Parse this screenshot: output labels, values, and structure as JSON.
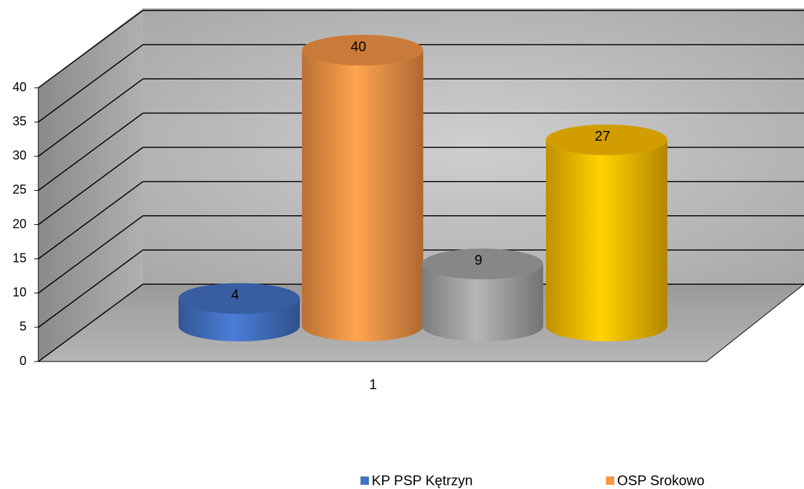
{
  "chart_data": {
    "type": "bar3d-cylinder",
    "categories": [
      "1"
    ],
    "series": [
      {
        "name": "KP PSP Kętrzyn",
        "color": "#4472c4",
        "values": [
          4
        ]
      },
      {
        "name": "OSP Srokowo",
        "color": "#f79646",
        "values": [
          40
        ]
      },
      {
        "name": null,
        "color": "#a5a5a5",
        "values": [
          9
        ]
      },
      {
        "name": null,
        "color": "#ffc000",
        "values": [
          27
        ]
      }
    ],
    "ylim": [
      0,
      40
    ],
    "yticks": [
      0,
      5,
      10,
      15,
      20,
      25,
      30,
      35,
      40
    ],
    "grid": true
  }
}
